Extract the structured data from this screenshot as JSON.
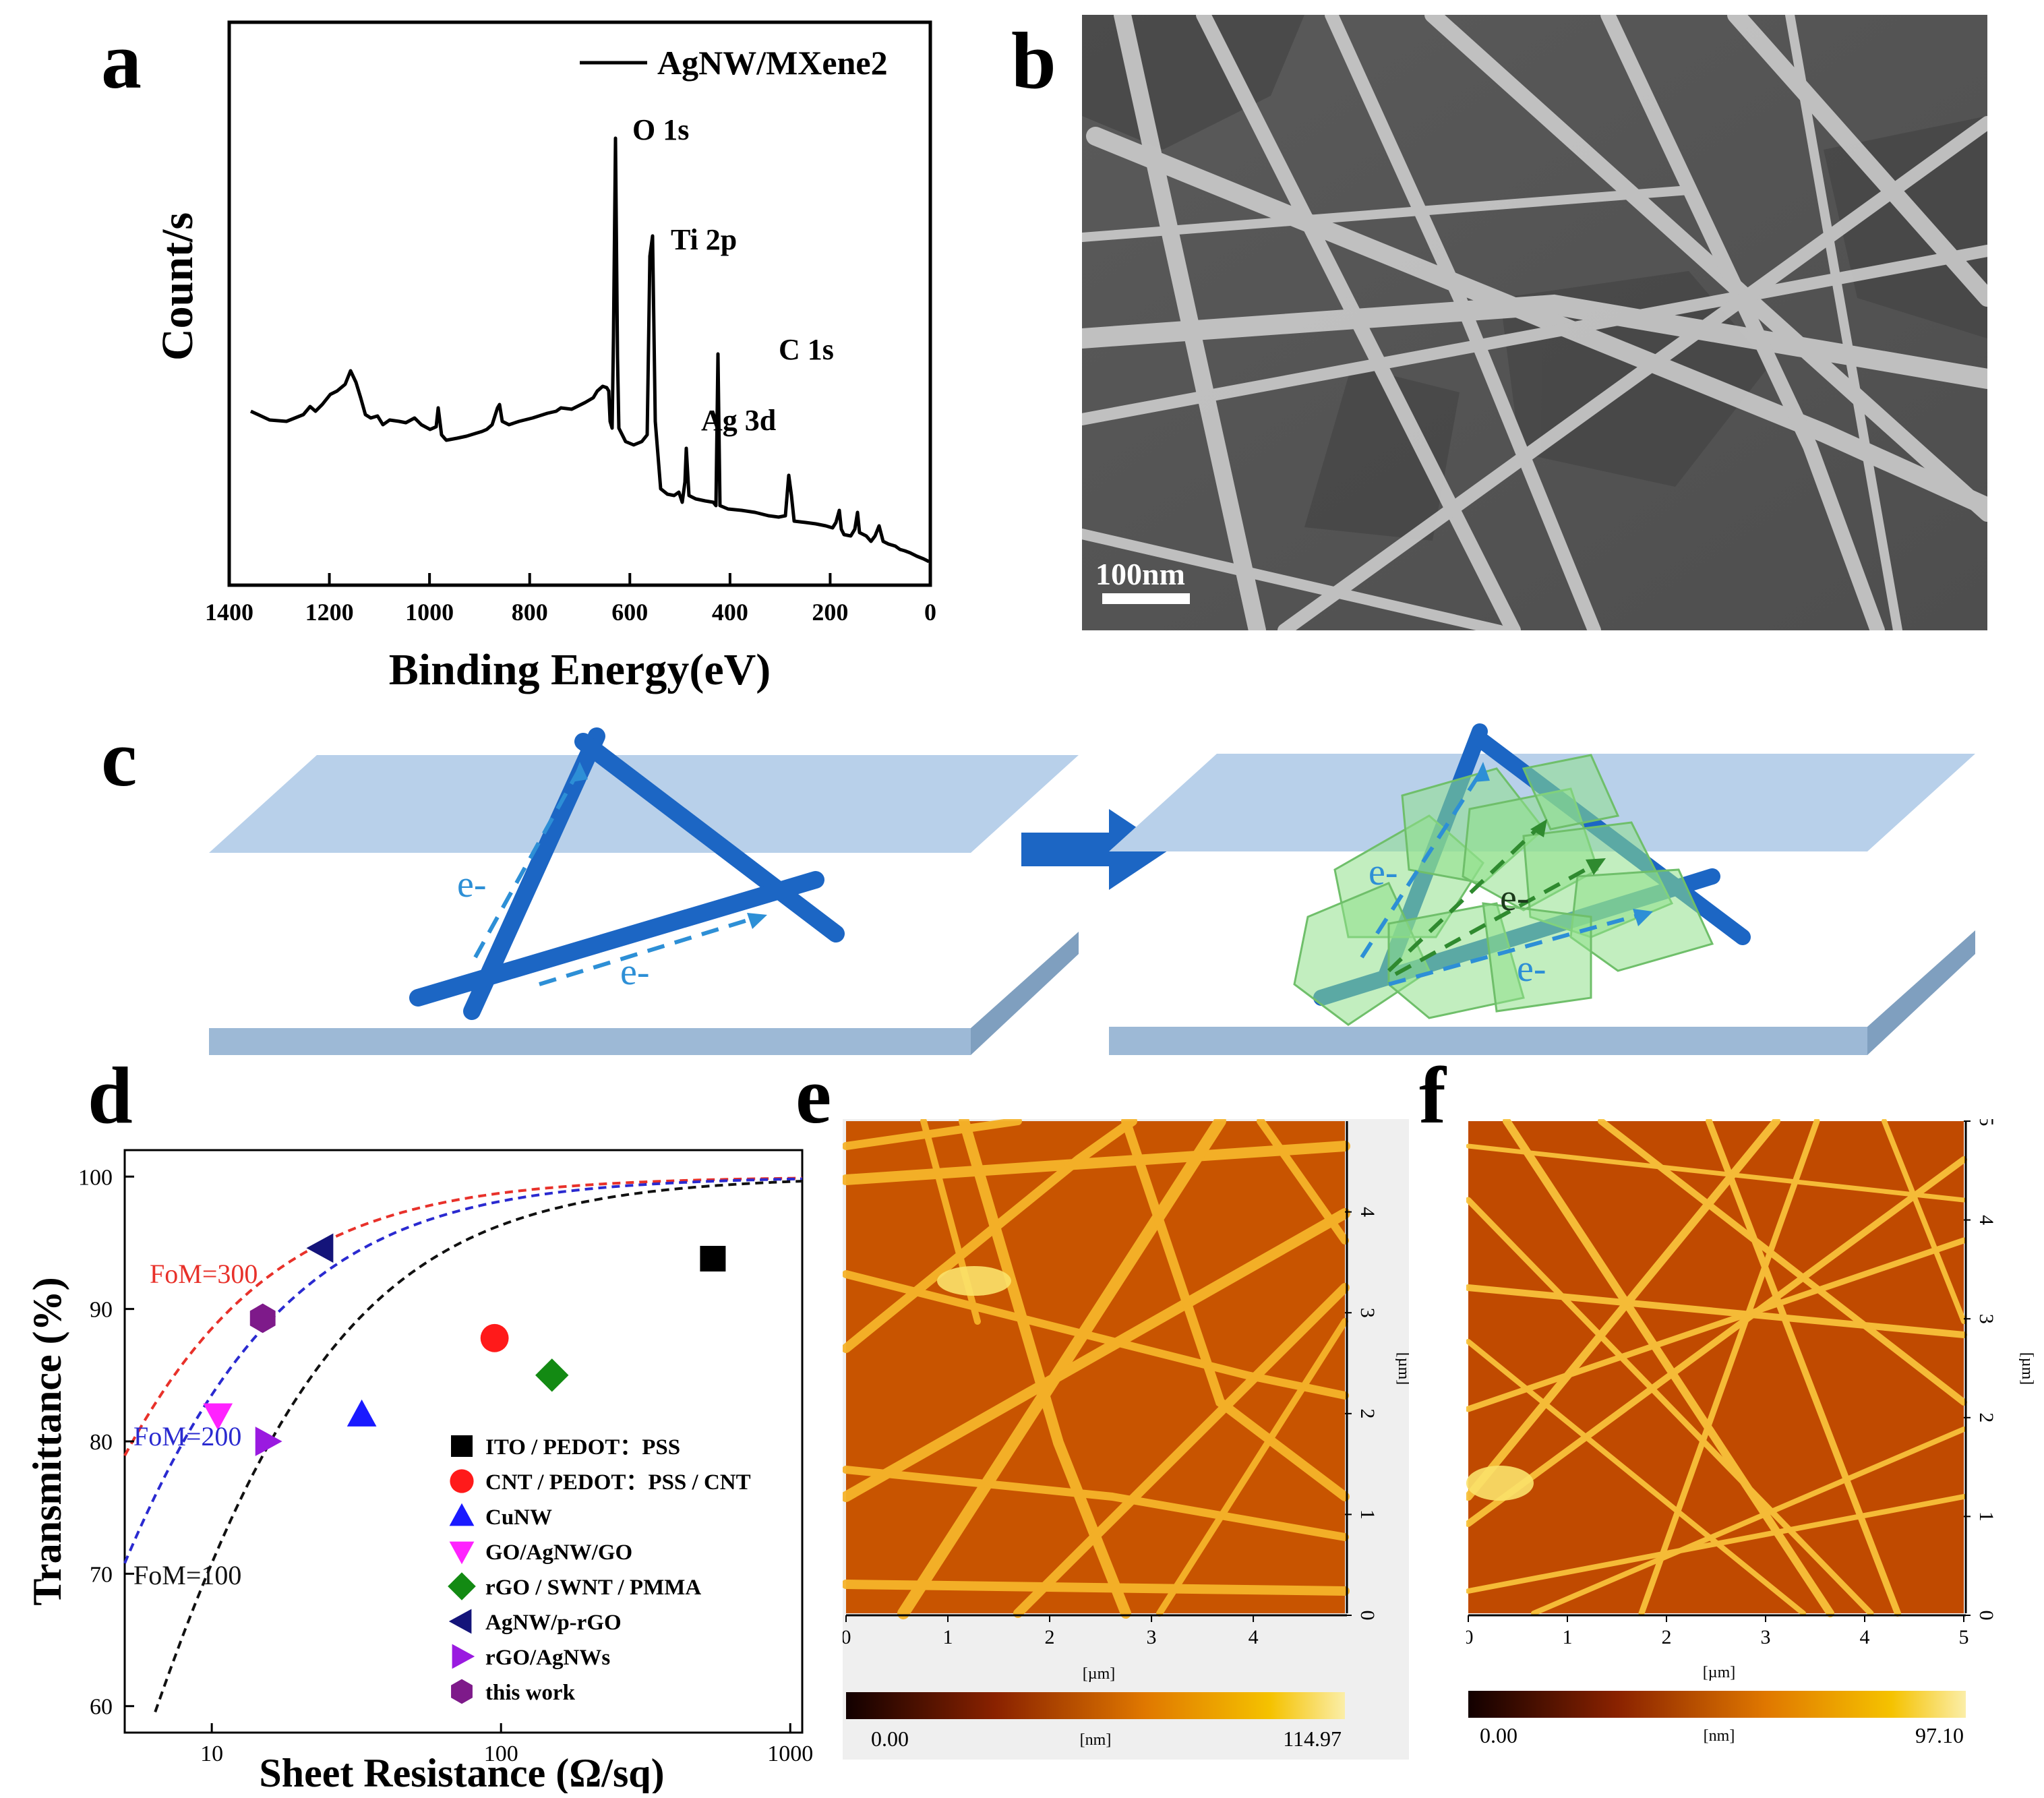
{
  "panels": {
    "a": {
      "label": "a",
      "legend": "AgNW/MXene2",
      "ylabel": "Count/s",
      "xlabel": "Binding Energy(eV)",
      "peaks": [
        "O 1s",
        "Ti 2p",
        "Ag 3d",
        "C 1s"
      ]
    },
    "b": {
      "label": "b",
      "scale_bar": "100nm"
    },
    "c": {
      "label": "c",
      "electron": "e-"
    },
    "d": {
      "label": "d"
    },
    "e": {
      "label": "e",
      "colorbar_min": "0.00",
      "colorbar_max": "114.97",
      "colorbar_unit": "[nm]",
      "axis_unit": "[µm]"
    },
    "f": {
      "label": "f",
      "colorbar_min": "0.00",
      "colorbar_max": "97.10",
      "colorbar_unit": "[nm]",
      "axis_unit": "[µm]"
    }
  },
  "chart_data": [
    {
      "type": "line",
      "panel": "a",
      "xlabel": "Binding Energy(eV)",
      "ylabel": "Count/s",
      "xlim": [
        1400,
        0
      ],
      "xticks": [
        "1400",
        "1200",
        "1000",
        "800",
        "600",
        "400",
        "200",
        "0"
      ],
      "series": [
        {
          "name": "AgNW/MXene2",
          "peaks_eV": [
            1220,
            1100,
            1070,
            970,
            830,
            685,
            560,
            531,
            458,
            370,
            285,
            160,
            100
          ]
        }
      ],
      "annotations": [
        "O 1s",
        "Ti 2p",
        "Ag 3d",
        "C 1s"
      ]
    },
    {
      "type": "scatter",
      "panel": "d",
      "xlabel": "Sheet Resistance (Ω/sq)",
      "ylabel": "Transmittance (%)",
      "xscale": "log",
      "xlim": [
        5,
        1100
      ],
      "ylim": [
        58,
        102
      ],
      "xticks": [
        "10",
        "100",
        "1000"
      ],
      "yticks": [
        "60",
        "70",
        "80",
        "90",
        "100"
      ],
      "curves": [
        {
          "name": "FoM=300",
          "label": "FoM=300",
          "color": "#e8312a",
          "fom": 300
        },
        {
          "name": "FoM=200",
          "label": "FoM=200",
          "color": "#2a2ad0",
          "fom": 200
        },
        {
          "name": "FoM=100",
          "label": "FoM=100",
          "color": "#111111",
          "fom": 100
        }
      ],
      "series": [
        {
          "name": "ITO / PEDOT：PSS",
          "marker": "square",
          "color": "#000000",
          "x": 540,
          "y": 93.8
        },
        {
          "name": "CNT / PEDOT：PSS / CNT",
          "marker": "circle",
          "color": "#ff1a1a",
          "x": 95,
          "y": 87.8
        },
        {
          "name": "CuNW",
          "marker": "triangle-up",
          "color": "#1a1aff",
          "x": 33,
          "y": 82
        },
        {
          "name": "GO/AgNW/GO",
          "marker": "triangle-down",
          "color": "#ff22ff",
          "x": 10.5,
          "y": 82
        },
        {
          "name": "rGO / SWNT / PMMA",
          "marker": "diamond",
          "color": "#138a13",
          "x": 150,
          "y": 85
        },
        {
          "name": "AgNW/p-rGO",
          "marker": "triangle-left",
          "color": "#14147a",
          "x": 24,
          "y": 94.6
        },
        {
          "name": "rGO/AgNWs",
          "marker": "triangle-right",
          "color": "#9a1ae0",
          "x": 15.5,
          "y": 80
        },
        {
          "name": "this work",
          "marker": "hexagon",
          "color": "#7e1a8a",
          "x": 15,
          "y": 89.3
        }
      ]
    },
    {
      "type": "heatmap",
      "panel": "e",
      "xlabel": "[µm]",
      "ylabel": "[µm]",
      "xlim": [
        0,
        4.9
      ],
      "ylim": [
        0,
        4.9
      ],
      "xticks": [
        "0",
        "1",
        "2",
        "3",
        "4"
      ],
      "yticks": [
        "0",
        "1",
        "2",
        "3",
        "4"
      ],
      "colorbar_range": [
        0.0,
        114.97
      ]
    },
    {
      "type": "heatmap",
      "panel": "f",
      "xlabel": "[µm]",
      "ylabel": "[µm]",
      "xlim": [
        0,
        5
      ],
      "ylim": [
        0,
        5
      ],
      "xticks": [
        "0",
        "1",
        "2",
        "3",
        "4",
        "5"
      ],
      "yticks": [
        "0",
        "1",
        "2",
        "3",
        "4",
        "5"
      ],
      "colorbar_range": [
        0.0,
        97.1
      ]
    }
  ]
}
